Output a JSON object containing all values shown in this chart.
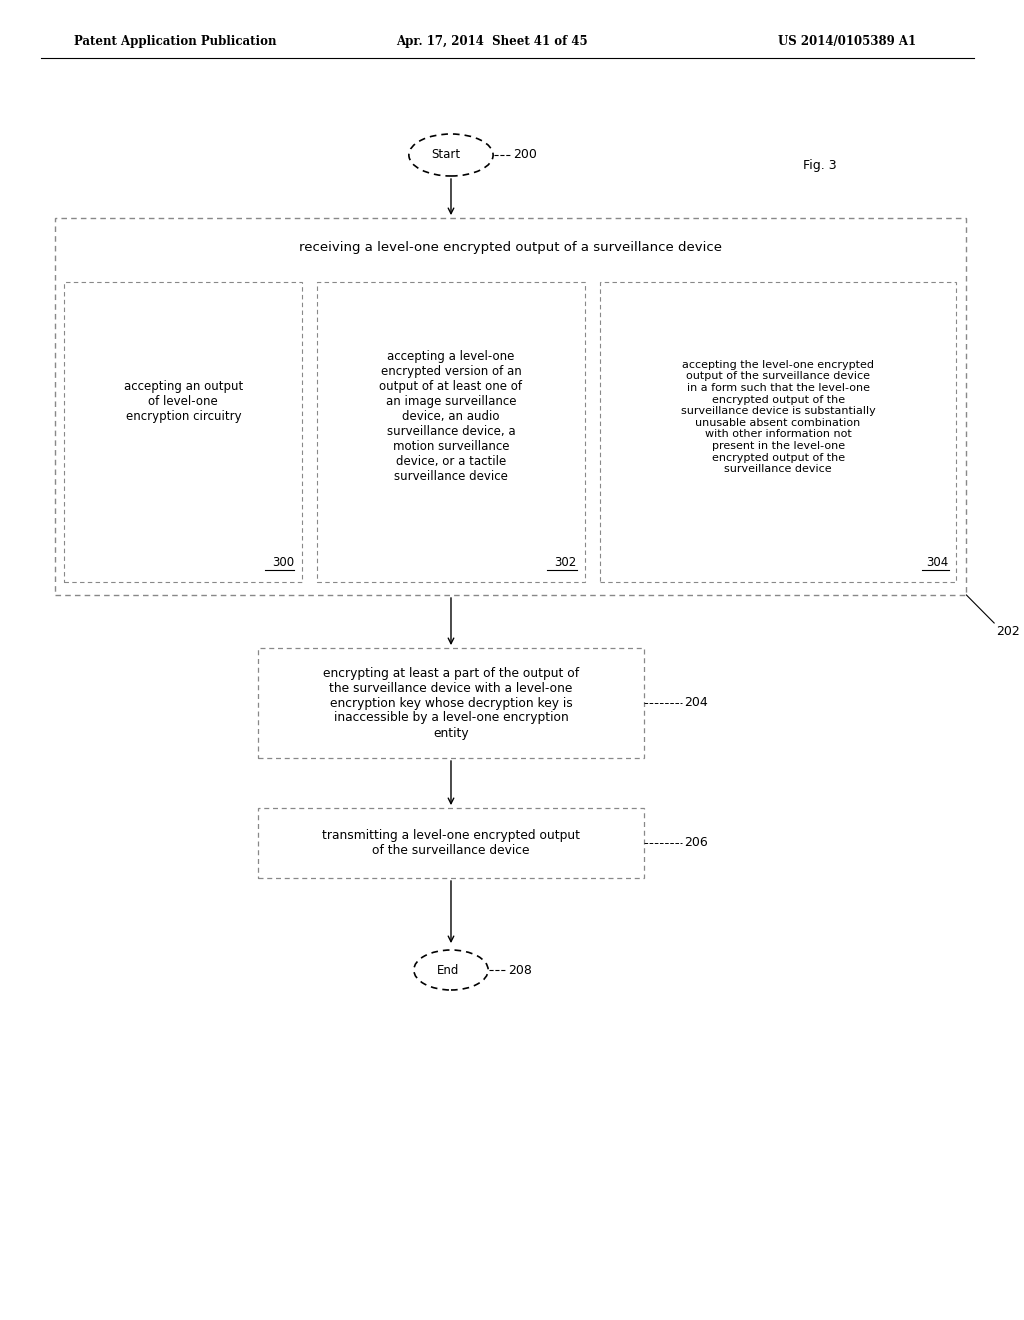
{
  "header_left": "Patent Application Publication",
  "header_mid": "Apr. 17, 2014  Sheet 41 of 45",
  "header_right": "US 2014/0105389 A1",
  "fig_label": "Fig. 3",
  "start_label": "Start",
  "start_num": "200",
  "end_label": "End",
  "end_num": "208",
  "box1_text": "receiving a level-one encrypted output of a surveillance device",
  "box1_num": "202",
  "sub1_text": "accepting an output\nof level-one\nencryption circuitry",
  "sub1_num": "300",
  "sub2_text": "accepting a level-one\nencrypted version of an\noutput of at least one of\nan image surveillance\ndevice, an audio\nsurveillance device, a\nmotion surveillance\ndevice, or a tactile\nsurveillance device",
  "sub2_num": "302",
  "sub3_text": "accepting the level-one encrypted\noutput of the surveillance device\nin a form such that the level-one\nencrypted output of the\nsurveillance device is substantially\nunusable absent combination\nwith other information not\npresent in the level-one\nencrypted output of the\nsurveillance device",
  "sub3_num": "304",
  "box2_text": "encrypting at least a part of the output of\nthe surveillance device with a level-one\nencryption key whose decryption key is\ninaccessible by a level-one encryption\nentity",
  "box2_num": "204",
  "box3_text": "transmitting a level-one encrypted output\nof the surveillance device",
  "box3_num": "206",
  "bg_color": "#ffffff",
  "text_color": "#000000",
  "box_edge_color": "#888888",
  "line_color": "#888888"
}
